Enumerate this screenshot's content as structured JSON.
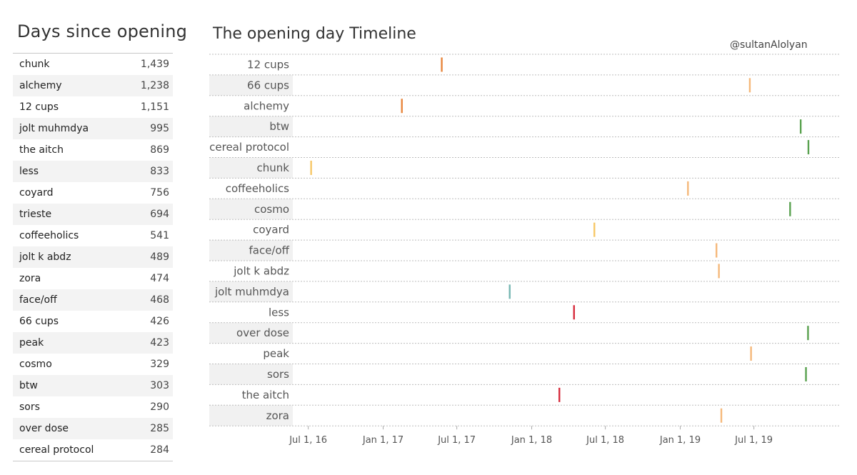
{
  "left_panel": {
    "title": "Days since opening",
    "rows": [
      {
        "name": "chunk",
        "value": "1,439"
      },
      {
        "name": "alchemy",
        "value": "1,238"
      },
      {
        "name": "12 cups",
        "value": "1,151"
      },
      {
        "name": "jolt muhmdya",
        "value": "995"
      },
      {
        "name": "the aitch",
        "value": "869"
      },
      {
        "name": "less",
        "value": "833"
      },
      {
        "name": "coyard",
        "value": "756"
      },
      {
        "name": "trieste",
        "value": "694"
      },
      {
        "name": "coffeeholics",
        "value": "541"
      },
      {
        "name": "jolt k abdz",
        "value": "489"
      },
      {
        "name": "zora",
        "value": "474"
      },
      {
        "name": "face/off",
        "value": "468"
      },
      {
        "name": "66 cups",
        "value": "426"
      },
      {
        "name": "peak",
        "value": "423"
      },
      {
        "name": "cosmo",
        "value": "329"
      },
      {
        "name": "btw",
        "value": "303"
      },
      {
        "name": "sors",
        "value": "290"
      },
      {
        "name": "over dose",
        "value": "285"
      },
      {
        "name": "cereal protocol",
        "value": "284"
      }
    ]
  },
  "credit": "@sultanAlolyan",
  "chart_data": {
    "type": "scatter",
    "title": "The opening day Timeline",
    "xlabel": "",
    "ylabel": "",
    "x_axis_type": "date",
    "xlim": [
      "2016-05-24",
      "2020-01-30"
    ],
    "x_ticks": [
      {
        "date": "2016-07-01",
        "label": "Jul 1, 16"
      },
      {
        "date": "2017-01-01",
        "label": "Jan 1, 17"
      },
      {
        "date": "2017-07-01",
        "label": "Jul 1, 17"
      },
      {
        "date": "2018-01-01",
        "label": "Jan 1, 18"
      },
      {
        "date": "2018-07-01",
        "label": "Jul 1, 18"
      },
      {
        "date": "2019-01-01",
        "label": "Jan 1, 19"
      },
      {
        "date": "2019-07-01",
        "label": "Jul 1, 19"
      }
    ],
    "grid": true,
    "mark_style": "vertical-tick",
    "categories": [
      "12 cups",
      "66 cups",
      "alchemy",
      "btw",
      "cereal protocol",
      "chunk",
      "coffeeholics",
      "cosmo",
      "coyard",
      "face/off",
      "jolt k abdz",
      "jolt muhmdya",
      "less",
      "over dose",
      "peak",
      "sors",
      "the aitch",
      "zora"
    ],
    "points": [
      {
        "category": "12 cups",
        "date": "2017-05-25",
        "color": "#e8853b"
      },
      {
        "category": "66 cups",
        "date": "2019-06-21",
        "color": "#f5b87a"
      },
      {
        "category": "alchemy",
        "date": "2017-02-16",
        "color": "#e8853b"
      },
      {
        "category": "btw",
        "date": "2019-10-24",
        "color": "#59a14f"
      },
      {
        "category": "cereal protocol",
        "date": "2019-11-12",
        "color": "#59a14f"
      },
      {
        "category": "chunk",
        "date": "2016-07-08",
        "color": "#f7c766"
      },
      {
        "category": "coffeeholics",
        "date": "2019-01-20",
        "color": "#f5b87a"
      },
      {
        "category": "cosmo",
        "date": "2019-09-28",
        "color": "#59a14f"
      },
      {
        "category": "coyard",
        "date": "2018-06-04",
        "color": "#f7c766"
      },
      {
        "category": "face/off",
        "date": "2019-03-31",
        "color": "#f5b87a"
      },
      {
        "category": "jolt k abdz",
        "date": "2019-04-06",
        "color": "#f5b87a"
      },
      {
        "category": "jolt muhmdya",
        "date": "2017-11-08",
        "color": "#76b7b2"
      },
      {
        "category": "less",
        "date": "2018-04-15",
        "color": "#d62b3c"
      },
      {
        "category": "over dose",
        "date": "2019-11-11",
        "color": "#59a14f"
      },
      {
        "category": "peak",
        "date": "2019-06-24",
        "color": "#f5b87a"
      },
      {
        "category": "sors",
        "date": "2019-11-06",
        "color": "#59a14f"
      },
      {
        "category": "the aitch",
        "date": "2018-03-10",
        "color": "#d62b3c"
      },
      {
        "category": "zora",
        "date": "2019-04-12",
        "color": "#f5b87a"
      }
    ]
  }
}
